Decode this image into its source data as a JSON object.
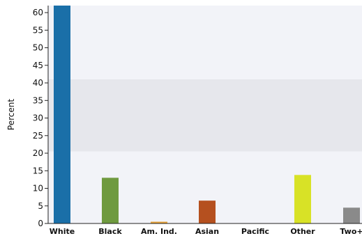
{
  "chart_data": {
    "type": "bar",
    "ylabel": "Percent",
    "ylim": [
      0,
      62
    ],
    "yticks": [
      0,
      5,
      10,
      15,
      20,
      25,
      30,
      35,
      40,
      45,
      50,
      55,
      60
    ],
    "categories": [
      "White",
      "Black",
      "Am. Ind.",
      "Asian",
      "Pacific",
      "Other",
      "Two+"
    ],
    "values": [
      62,
      13,
      0.5,
      6.5,
      0,
      13.8,
      4.5
    ],
    "colors": [
      "#1a6fa8",
      "#6f9a3f",
      "#e8a33a",
      "#b5501f",
      "#1a6fa8",
      "#d8e226",
      "#8a8a8a"
    ],
    "background_color": "#f2f3f8",
    "highlight_band": {
      "from": 20.5,
      "to": 41,
      "color": "#e6e7ec"
    },
    "grid": false
  }
}
